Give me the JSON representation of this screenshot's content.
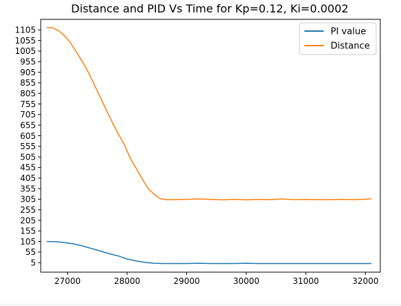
{
  "chart_data": {
    "type": "line",
    "title": "Distance and PID Vs Time for Kp=0.12, Ki=0.0002",
    "xlabel": "",
    "ylabel": "",
    "xlim": [
      26550,
      32250
    ],
    "ylim": [
      -40,
      1155
    ],
    "xticks": [
      27000,
      28000,
      29000,
      30000,
      31000,
      32000
    ],
    "yticks": [
      5,
      55,
      105,
      155,
      205,
      255,
      305,
      355,
      405,
      455,
      505,
      555,
      605,
      655,
      705,
      755,
      805,
      855,
      905,
      955,
      1005,
      1055,
      1105
    ],
    "grid": false,
    "legend_position": "top-right",
    "series": [
      {
        "name": "PI value",
        "color": "#1f77b4",
        "points": [
          [
            26650,
            105
          ],
          [
            26800,
            104
          ],
          [
            26950,
            100
          ],
          [
            27100,
            94
          ],
          [
            27250,
            84
          ],
          [
            27400,
            72
          ],
          [
            27550,
            60
          ],
          [
            27700,
            47
          ],
          [
            27850,
            37
          ],
          [
            28000,
            22
          ],
          [
            28150,
            13
          ],
          [
            28300,
            6
          ],
          [
            28450,
            2
          ],
          [
            28600,
            1
          ],
          [
            28800,
            1
          ],
          [
            29000,
            1
          ],
          [
            29200,
            2
          ],
          [
            29400,
            1
          ],
          [
            29600,
            1
          ],
          [
            29800,
            1
          ],
          [
            30000,
            2
          ],
          [
            30200,
            1
          ],
          [
            30400,
            1
          ],
          [
            30600,
            1
          ],
          [
            30800,
            1
          ],
          [
            31000,
            1
          ],
          [
            31200,
            1
          ],
          [
            31400,
            1
          ],
          [
            31600,
            1
          ],
          [
            31800,
            1
          ],
          [
            32000,
            1
          ],
          [
            32100,
            1
          ]
        ]
      },
      {
        "name": "Distance",
        "color": "#ff7f0e",
        "points": [
          [
            26650,
            1117
          ],
          [
            26750,
            1115
          ],
          [
            26850,
            1101
          ],
          [
            26950,
            1078
          ],
          [
            27050,
            1044
          ],
          [
            27150,
            1000
          ],
          [
            27250,
            955
          ],
          [
            27350,
            905
          ],
          [
            27450,
            845
          ],
          [
            27550,
            787
          ],
          [
            27650,
            727
          ],
          [
            27750,
            669
          ],
          [
            27850,
            615
          ],
          [
            27950,
            565
          ],
          [
            28050,
            500
          ],
          [
            28150,
            452
          ],
          [
            28250,
            402
          ],
          [
            28350,
            357
          ],
          [
            28450,
            329
          ],
          [
            28550,
            308
          ],
          [
            28650,
            303
          ],
          [
            28800,
            303
          ],
          [
            29000,
            304
          ],
          [
            29200,
            306
          ],
          [
            29400,
            304
          ],
          [
            29600,
            302
          ],
          [
            29800,
            304
          ],
          [
            30000,
            302
          ],
          [
            30200,
            304
          ],
          [
            30400,
            303
          ],
          [
            30600,
            306
          ],
          [
            30800,
            303
          ],
          [
            31000,
            304
          ],
          [
            31200,
            303
          ],
          [
            31400,
            303
          ],
          [
            31600,
            304
          ],
          [
            31800,
            303
          ],
          [
            32000,
            305
          ],
          [
            32100,
            307
          ]
        ]
      }
    ]
  }
}
